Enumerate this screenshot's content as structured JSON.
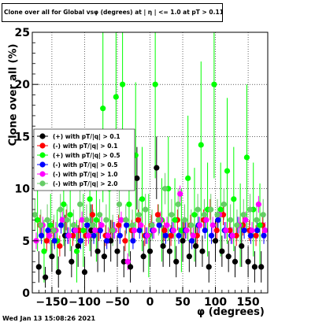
{
  "title": "Clone  over all for Global vsφ (degrees) at | η | <= 1.0 at pT > 0.11",
  "footer": "Wed Jan 13 15:08:26 2021",
  "chart_data": {
    "type": "scatter",
    "title": "Clone  over all for Global vsφ (degrees) at | η | <= 1.0 at pT > 0.11",
    "xlabel": "φ (degrees)",
    "ylabel": "Clone  over all (%)",
    "xlim": [
      -180,
      180
    ],
    "ylim": [
      0,
      25
    ],
    "xticks": [
      -150,
      -100,
      -50,
      0,
      50,
      100,
      150
    ],
    "xtick_labels": [
      "−150",
      "−100",
      "−50",
      "0",
      "50",
      "100",
      "150"
    ],
    "yticks": [
      0,
      5,
      10,
      15,
      20,
      25
    ],
    "ytick_labels": [
      "0",
      "5",
      "10",
      "15",
      "20",
      "25"
    ],
    "grid": true,
    "legend_position": "left-middle",
    "series": [
      {
        "name": "(+) with pT/|q| > 0.1",
        "color": "#000000",
        "x": [
          -170,
          -160,
          -150,
          -140,
          -130,
          -120,
          -110,
          -100,
          -90,
          -80,
          -70,
          -60,
          -50,
          -40,
          -30,
          -20,
          -10,
          0,
          10,
          20,
          30,
          40,
          50,
          60,
          70,
          80,
          90,
          100,
          110,
          120,
          130,
          140,
          150,
          160,
          170
        ],
        "y": [
          2.5,
          1.5,
          3.5,
          2.0,
          5.5,
          3.0,
          4.5,
          2.0,
          6.0,
          4.0,
          3.5,
          5.0,
          4.0,
          3.0,
          2.5,
          11.0,
          3.5,
          4.0,
          12.0,
          4.5,
          4.0,
          3.0,
          5.0,
          3.5,
          4.5,
          4.0,
          2.5,
          5.0,
          4.0,
          3.5,
          3.0,
          4.5,
          3.0,
          2.5,
          2.5
        ],
        "err": [
          1.5,
          1.0,
          1.5,
          1.5,
          2.0,
          1.5,
          2.0,
          1.5,
          2.5,
          2.0,
          1.5,
          2.0,
          1.5,
          1.5,
          1.5,
          3.0,
          1.5,
          1.5,
          3.0,
          2.0,
          1.5,
          1.5,
          2.0,
          1.5,
          2.0,
          1.5,
          1.5,
          2.0,
          1.5,
          1.5,
          1.5,
          2.0,
          1.5,
          1.5,
          1.5
        ]
      },
      {
        "name": "(-) with pT/|q| > 0.1",
        "color": "#ff0000",
        "x": [
          -168,
          -158,
          -148,
          -138,
          -128,
          -118,
          -108,
          -98,
          -88,
          -78,
          -68,
          -58,
          -48,
          -38,
          -28,
          -18,
          -8,
          2,
          12,
          22,
          32,
          42,
          52,
          62,
          72,
          82,
          92,
          102,
          112,
          122,
          132,
          142,
          152,
          162,
          172
        ],
        "y": [
          6.5,
          5.0,
          6.0,
          4.5,
          7.0,
          5.5,
          6.0,
          5.5,
          7.5,
          6.0,
          5.5,
          6.0,
          6.5,
          5.0,
          6.0,
          7.0,
          5.5,
          6.5,
          7.5,
          6.0,
          5.5,
          7.0,
          6.0,
          6.5,
          5.5,
          7.0,
          8.0,
          6.0,
          7.5,
          6.0,
          5.5,
          6.5,
          6.0,
          5.5,
          6.5
        ],
        "err": [
          1.0,
          1.0,
          1.0,
          1.0,
          1.0,
          1.0,
          1.0,
          1.0,
          1.0,
          1.0,
          1.0,
          1.0,
          1.0,
          1.0,
          1.0,
          1.0,
          1.0,
          1.0,
          1.0,
          1.0,
          1.0,
          1.0,
          1.0,
          1.0,
          1.0,
          1.0,
          1.0,
          1.0,
          1.0,
          1.0,
          1.0,
          1.0,
          1.0,
          1.0,
          1.0
        ]
      },
      {
        "name": "(+) with pT/|q| > 0.5",
        "color": "#00ff00",
        "x": [
          -172,
          -162,
          -152,
          -142,
          -132,
          -122,
          -112,
          -102,
          -92,
          -82,
          -72,
          -62,
          -52,
          -42,
          -32,
          -22,
          -12,
          -2,
          8,
          18,
          28,
          38,
          48,
          58,
          68,
          78,
          88,
          98,
          108,
          118,
          128,
          138,
          148,
          158,
          168
        ],
        "y": [
          7.0,
          4.0,
          6.5,
          5.0,
          8.5,
          7.5,
          4.0,
          6.0,
          9.0,
          7.0,
          17.7,
          10.0,
          18.8,
          20.0,
          8.5,
          13.2,
          9.0,
          5.5,
          20.0,
          7.0,
          10.0,
          7.0,
          6.0,
          11.0,
          7.5,
          14.2,
          8.0,
          20.0,
          8.0,
          11.7,
          9.0,
          6.5,
          13.0,
          8.0,
          6.5
        ],
        "err": [
          3.0,
          3.0,
          3.0,
          3.0,
          4.0,
          3.5,
          3.0,
          3.5,
          5.0,
          4.0,
          9.0,
          5.0,
          9.0,
          9.0,
          5.0,
          7.0,
          5.0,
          4.0,
          9.0,
          4.0,
          5.0,
          4.0,
          4.0,
          6.0,
          4.5,
          8.0,
          4.5,
          9.0,
          4.5,
          7.0,
          5.0,
          4.0,
          7.0,
          4.5,
          4.0
        ]
      },
      {
        "name": "(-) with pT/|q| > 0.5",
        "color": "#0000ff",
        "x": [
          -166,
          -156,
          -146,
          -136,
          -126,
          -116,
          -106,
          -96,
          -86,
          -76,
          -66,
          -56,
          -46,
          -36,
          -26,
          -16,
          -6,
          4,
          14,
          24,
          34,
          44,
          54,
          64,
          74,
          84,
          94,
          104,
          114,
          124,
          134,
          144,
          154,
          164,
          174
        ],
        "y": [
          5.5,
          6.0,
          5.0,
          6.5,
          5.5,
          6.0,
          5.0,
          6.5,
          5.5,
          6.0,
          5.0,
          6.0,
          5.5,
          6.5,
          5.0,
          6.0,
          5.5,
          6.0,
          6.5,
          5.5,
          6.0,
          5.5,
          6.0,
          5.0,
          6.5,
          6.0,
          5.5,
          7.0,
          6.0,
          5.5,
          6.5,
          6.0,
          5.5,
          6.0,
          5.5
        ],
        "err": [
          0.8,
          0.8,
          0.8,
          0.8,
          0.8,
          0.8,
          0.8,
          0.8,
          0.8,
          0.8,
          0.8,
          0.8,
          0.8,
          0.8,
          0.8,
          0.8,
          0.8,
          0.8,
          0.8,
          0.8,
          0.8,
          0.8,
          0.8,
          0.8,
          0.8,
          0.8,
          0.8,
          0.8,
          0.8,
          0.8,
          0.8,
          0.8,
          0.8,
          0.8,
          0.8
        ]
      },
      {
        "name": "(-) with pT/|q| > 1.0",
        "color": "#ff00ff",
        "x": [
          -174,
          -164,
          -154,
          -144,
          -134,
          -124,
          -114,
          -104,
          -94,
          -84,
          -74,
          -64,
          -54,
          -44,
          -34,
          -24,
          -14,
          -4,
          6,
          16,
          26,
          36,
          46,
          56,
          66,
          76,
          86,
          96,
          106,
          116,
          126,
          136,
          146,
          156,
          166,
          176
        ],
        "y": [
          5.0,
          6.5,
          5.5,
          6.0,
          7.0,
          5.5,
          6.0,
          7.0,
          5.5,
          6.0,
          6.5,
          5.5,
          6.0,
          7.0,
          3.0,
          6.0,
          6.5,
          5.5,
          6.0,
          7.0,
          6.5,
          6.0,
          9.5,
          6.0,
          5.5,
          6.5,
          7.0,
          6.5,
          7.5,
          6.0,
          5.5,
          6.5,
          7.0,
          6.0,
          8.5,
          6.0
        ],
        "err": [
          0.8,
          0.8,
          0.8,
          0.8,
          0.8,
          0.8,
          0.8,
          0.8,
          0.8,
          0.8,
          0.8,
          0.8,
          0.8,
          0.8,
          0.8,
          0.8,
          0.8,
          0.8,
          0.8,
          0.8,
          0.8,
          0.8,
          0.8,
          0.8,
          0.8,
          0.8,
          0.8,
          0.8,
          0.8,
          0.8,
          0.8,
          0.8,
          0.8,
          0.8,
          0.8,
          0.8
        ]
      },
      {
        "name": "(-) with pT/|q| > 2.0",
        "color": "#66cc66",
        "x": [
          -176,
          -167,
          -157,
          -147,
          -137,
          -127,
          -117,
          -107,
          -97,
          -87,
          -77,
          -67,
          -57,
          -47,
          -37,
          -27,
          -17,
          -7,
          3,
          13,
          23,
          33,
          43,
          53,
          63,
          73,
          83,
          93,
          103,
          113,
          123,
          133,
          143,
          153,
          163,
          173
        ],
        "y": [
          7.5,
          6.5,
          7.0,
          6.0,
          8.0,
          7.0,
          6.5,
          8.5,
          7.0,
          6.5,
          7.5,
          7.0,
          6.0,
          8.5,
          7.0,
          6.5,
          7.5,
          8.0,
          6.5,
          7.0,
          10.0,
          7.5,
          8.5,
          7.0,
          6.5,
          8.0,
          7.5,
          8.0,
          7.5,
          8.5,
          7.0,
          6.5,
          7.5,
          8.0,
          7.0,
          7.5
        ],
        "err": [
          1.5,
          1.5,
          1.5,
          1.5,
          1.5,
          1.5,
          1.5,
          1.5,
          1.5,
          1.5,
          1.5,
          1.5,
          1.5,
          1.5,
          1.5,
          1.5,
          1.5,
          1.5,
          1.5,
          1.5,
          1.5,
          1.5,
          1.5,
          1.5,
          1.5,
          1.5,
          1.5,
          1.5,
          1.5,
          1.5,
          1.5,
          1.5,
          1.5,
          1.5,
          1.5,
          1.5
        ]
      }
    ]
  }
}
